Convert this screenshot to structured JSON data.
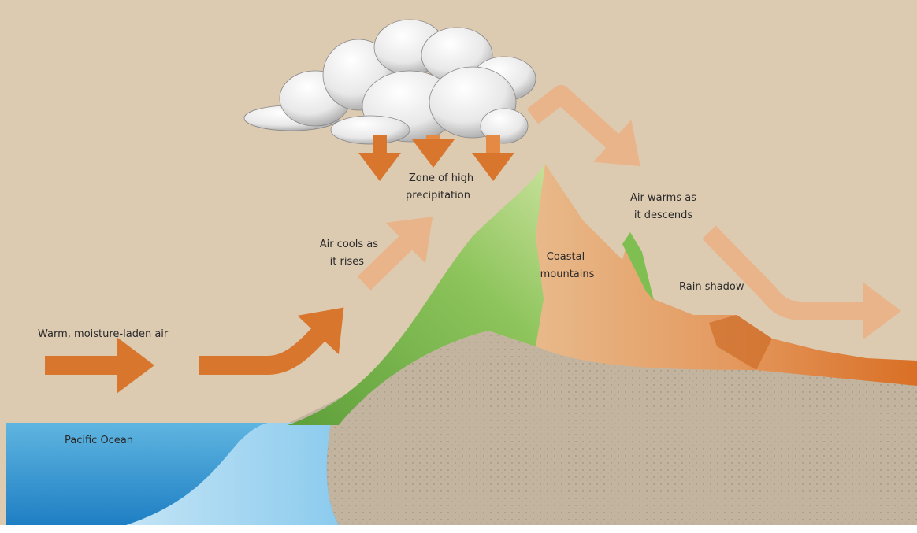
{
  "labels": {
    "warm_air": "Warm, moisture-laden air",
    "air_cools": [
      "Air cools as",
      "it rises"
    ],
    "high_precipitation": [
      "Zone of high",
      "precipitation"
    ],
    "air_warms": [
      "Air warms as",
      "it descends"
    ],
    "coastal_mountains": [
      "Coastal",
      "mountains"
    ],
    "rain_shadow": "Rain shadow",
    "pacific_ocean": "Pacific Ocean"
  }
}
